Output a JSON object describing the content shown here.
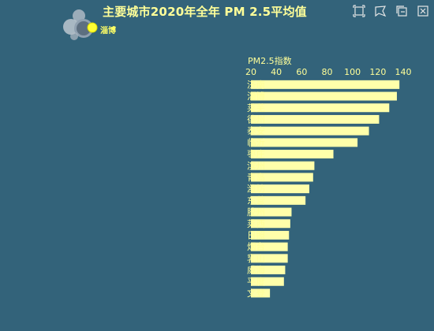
{
  "page": {
    "title": "主要城市2020年全年 PM 2.5平均值",
    "logo_text": "淄博",
    "background": "#33637a",
    "title_color": "#ffff99"
  },
  "toolbox": [
    {
      "name": "zoom-icon"
    },
    {
      "name": "lasso-icon"
    },
    {
      "name": "restore-icon"
    },
    {
      "name": "close-icon"
    }
  ],
  "chart_data": {
    "type": "bar",
    "orientation": "horizontal",
    "axis_name": "PM2.5指数",
    "axis_position": "top",
    "xlim": [
      20,
      140
    ],
    "ticks": [
      20,
      40,
      60,
      80,
      100,
      120,
      140
    ],
    "grid": false,
    "bar_color": "#ffffaa",
    "categories": [
      "济南",
      "淄博",
      "莱芜",
      "德州",
      "泰安",
      "临沂",
      "枣庄",
      "滨州",
      "青岛",
      "潍坊",
      "东营",
      "胶州",
      "莱西",
      "日照",
      "烟台",
      "乳山",
      "威海",
      "平度",
      "文登"
    ],
    "values": [
      137,
      135,
      129,
      121,
      113,
      104,
      85,
      70,
      69,
      66,
      63,
      52,
      51,
      50,
      49,
      49,
      47,
      46,
      35
    ]
  }
}
